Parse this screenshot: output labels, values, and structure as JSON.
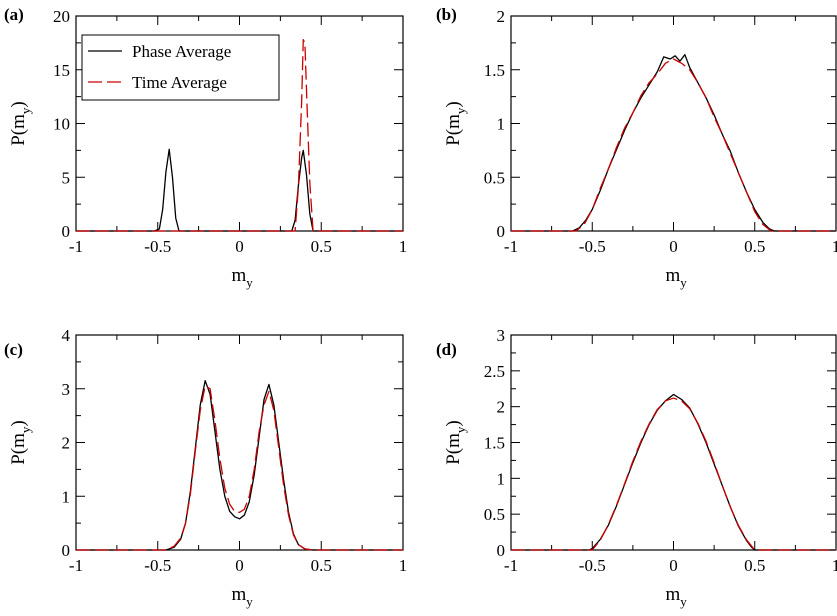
{
  "figure": {
    "background": "#ffffff"
  },
  "legend": {
    "entries": [
      {
        "name": "Phase Average",
        "color": "#000000",
        "dash": "solid"
      },
      {
        "name": "Time Average",
        "color": "#cc0000",
        "dash": "dashed"
      }
    ]
  },
  "chart_data": [
    {
      "panel": "(a)",
      "type": "line",
      "xlabel": "m",
      "xlabel_sub": "y",
      "ylabel": "P(m",
      "ylabel_sub": "y",
      "ylabel_close": ")",
      "xlim": [
        -1,
        1
      ],
      "ylim": [
        0,
        20
      ],
      "xticks": [
        -1,
        -0.5,
        0,
        0.5,
        1
      ],
      "xtick_labels": [
        "-1",
        "-0.5",
        "0",
        "0.5",
        "1"
      ],
      "yticks": [
        0,
        5,
        10,
        15,
        20
      ],
      "ytick_labels": [
        "0",
        "5",
        "10",
        "15",
        "20"
      ],
      "legend": "top-left",
      "grid": false,
      "series": [
        {
          "name": "Phase Average",
          "color": "#000000",
          "dash": "solid",
          "points": [
            [
              -1,
              0
            ],
            [
              -0.52,
              0
            ],
            [
              -0.49,
              0.2
            ],
            [
              -0.47,
              2.0
            ],
            [
              -0.45,
              5.5
            ],
            [
              -0.43,
              7.6
            ],
            [
              -0.41,
              5.0
            ],
            [
              -0.39,
              1.2
            ],
            [
              -0.37,
              0
            ],
            [
              0.32,
              0
            ],
            [
              0.34,
              1.0
            ],
            [
              0.36,
              4.2
            ],
            [
              0.38,
              6.8
            ],
            [
              0.39,
              7.5
            ],
            [
              0.41,
              5.2
            ],
            [
              0.43,
              1.6
            ],
            [
              0.45,
              0
            ],
            [
              1,
              0
            ]
          ]
        },
        {
          "name": "Time Average",
          "color": "#cc0000",
          "dash": "dashed",
          "points": [
            [
              -1,
              0
            ],
            [
              0.34,
              0
            ],
            [
              0.36,
              4.0
            ],
            [
              0.38,
              12.0
            ],
            [
              0.39,
              17.8
            ],
            [
              0.4,
              17.5
            ],
            [
              0.41,
              13.0
            ],
            [
              0.43,
              4.5
            ],
            [
              0.45,
              0
            ],
            [
              1,
              0
            ]
          ]
        }
      ]
    },
    {
      "panel": "(b)",
      "type": "line",
      "xlabel": "m",
      "xlabel_sub": "y",
      "ylabel": "P(m",
      "ylabel_sub": "y",
      "ylabel_close": ")",
      "xlim": [
        -1,
        1
      ],
      "ylim": [
        0,
        2
      ],
      "xticks": [
        -1,
        -0.5,
        0,
        0.5,
        1
      ],
      "xtick_labels": [
        "-1",
        "-0.5",
        "0",
        "0.5",
        "1"
      ],
      "yticks": [
        0,
        0.5,
        1,
        1.5,
        2
      ],
      "ytick_labels": [
        "0",
        "0.5",
        "1",
        "1.5",
        "2"
      ],
      "grid": false,
      "series": [
        {
          "name": "Phase Average",
          "color": "#000000",
          "dash": "solid",
          "points": [
            [
              -1,
              0
            ],
            [
              -0.62,
              0
            ],
            [
              -0.58,
              0.03
            ],
            [
              -0.54,
              0.1
            ],
            [
              -0.5,
              0.2
            ],
            [
              -0.45,
              0.38
            ],
            [
              -0.4,
              0.58
            ],
            [
              -0.35,
              0.76
            ],
            [
              -0.3,
              0.94
            ],
            [
              -0.25,
              1.1
            ],
            [
              -0.2,
              1.24
            ],
            [
              -0.15,
              1.36
            ],
            [
              -0.1,
              1.48
            ],
            [
              -0.06,
              1.62
            ],
            [
              -0.02,
              1.6
            ],
            [
              0.01,
              1.63
            ],
            [
              0.04,
              1.58
            ],
            [
              0.07,
              1.64
            ],
            [
              0.1,
              1.52
            ],
            [
              0.15,
              1.38
            ],
            [
              0.2,
              1.24
            ],
            [
              0.25,
              1.08
            ],
            [
              0.3,
              0.9
            ],
            [
              0.35,
              0.74
            ],
            [
              0.4,
              0.54
            ],
            [
              0.45,
              0.36
            ],
            [
              0.5,
              0.2
            ],
            [
              0.55,
              0.08
            ],
            [
              0.59,
              0.02
            ],
            [
              0.62,
              0
            ],
            [
              1,
              0
            ]
          ]
        },
        {
          "name": "Time Average",
          "color": "#cc0000",
          "dash": "dashed",
          "points": [
            [
              -1,
              0
            ],
            [
              -0.6,
              0
            ],
            [
              -0.55,
              0.06
            ],
            [
              -0.5,
              0.2
            ],
            [
              -0.45,
              0.4
            ],
            [
              -0.4,
              0.58
            ],
            [
              -0.35,
              0.78
            ],
            [
              -0.3,
              0.96
            ],
            [
              -0.25,
              1.1
            ],
            [
              -0.2,
              1.26
            ],
            [
              -0.15,
              1.38
            ],
            [
              -0.1,
              1.46
            ],
            [
              -0.05,
              1.56
            ],
            [
              0,
              1.6
            ],
            [
              0.05,
              1.56
            ],
            [
              0.1,
              1.5
            ],
            [
              0.15,
              1.38
            ],
            [
              0.2,
              1.24
            ],
            [
              0.25,
              1.06
            ],
            [
              0.3,
              0.9
            ],
            [
              0.35,
              0.72
            ],
            [
              0.4,
              0.54
            ],
            [
              0.45,
              0.36
            ],
            [
              0.5,
              0.18
            ],
            [
              0.55,
              0.06
            ],
            [
              0.6,
              0
            ],
            [
              1,
              0
            ]
          ]
        }
      ]
    },
    {
      "panel": "(c)",
      "type": "line",
      "xlabel": "m",
      "xlabel_sub": "y",
      "ylabel": "P(m",
      "ylabel_sub": "y",
      "ylabel_close": ")",
      "xlim": [
        -1,
        1
      ],
      "ylim": [
        0,
        4
      ],
      "xticks": [
        -1,
        -0.5,
        0,
        0.5,
        1
      ],
      "xtick_labels": [
        "-1",
        "-0.5",
        "0",
        "0.5",
        "1"
      ],
      "yticks": [
        0,
        1,
        2,
        3,
        4
      ],
      "ytick_labels": [
        "0",
        "1",
        "2",
        "3",
        "4"
      ],
      "grid": false,
      "series": [
        {
          "name": "Phase Average",
          "color": "#000000",
          "dash": "solid",
          "points": [
            [
              -1,
              0
            ],
            [
              -0.45,
              0
            ],
            [
              -0.4,
              0.05
            ],
            [
              -0.36,
              0.2
            ],
            [
              -0.33,
              0.5
            ],
            [
              -0.3,
              1.1
            ],
            [
              -0.27,
              1.9
            ],
            [
              -0.24,
              2.7
            ],
            [
              -0.21,
              3.15
            ],
            [
              -0.18,
              2.9
            ],
            [
              -0.15,
              2.2
            ],
            [
              -0.12,
              1.5
            ],
            [
              -0.09,
              1.0
            ],
            [
              -0.06,
              0.72
            ],
            [
              -0.03,
              0.62
            ],
            [
              0,
              0.58
            ],
            [
              0.03,
              0.65
            ],
            [
              0.06,
              0.9
            ],
            [
              0.09,
              1.4
            ],
            [
              0.12,
              2.1
            ],
            [
              0.15,
              2.8
            ],
            [
              0.18,
              3.08
            ],
            [
              0.21,
              2.7
            ],
            [
              0.24,
              2.0
            ],
            [
              0.27,
              1.3
            ],
            [
              0.3,
              0.7
            ],
            [
              0.33,
              0.3
            ],
            [
              0.36,
              0.1
            ],
            [
              0.4,
              0.02
            ],
            [
              0.45,
              0
            ],
            [
              1,
              0
            ]
          ]
        },
        {
          "name": "Time Average",
          "color": "#cc0000",
          "dash": "dashed",
          "points": [
            [
              -1,
              0
            ],
            [
              -0.45,
              0
            ],
            [
              -0.4,
              0.07
            ],
            [
              -0.36,
              0.22
            ],
            [
              -0.33,
              0.5
            ],
            [
              -0.3,
              1.05
            ],
            [
              -0.27,
              1.85
            ],
            [
              -0.24,
              2.6
            ],
            [
              -0.21,
              3.05
            ],
            [
              -0.18,
              3.0
            ],
            [
              -0.15,
              2.4
            ],
            [
              -0.12,
              1.7
            ],
            [
              -0.09,
              1.15
            ],
            [
              -0.06,
              0.85
            ],
            [
              -0.03,
              0.72
            ],
            [
              0,
              0.7
            ],
            [
              0.03,
              0.76
            ],
            [
              0.06,
              1.0
            ],
            [
              0.09,
              1.5
            ],
            [
              0.12,
              2.2
            ],
            [
              0.15,
              2.7
            ],
            [
              0.18,
              2.95
            ],
            [
              0.21,
              2.6
            ],
            [
              0.24,
              1.9
            ],
            [
              0.27,
              1.2
            ],
            [
              0.3,
              0.65
            ],
            [
              0.33,
              0.28
            ],
            [
              0.36,
              0.1
            ],
            [
              0.4,
              0.02
            ],
            [
              0.45,
              0
            ],
            [
              1,
              0
            ]
          ]
        }
      ]
    },
    {
      "panel": "(d)",
      "type": "line",
      "xlabel": "m",
      "xlabel_sub": "y",
      "ylabel": "P(m",
      "ylabel_sub": "y",
      "ylabel_close": ")",
      "xlim": [
        -1,
        1
      ],
      "ylim": [
        0,
        3
      ],
      "xticks": [
        -1,
        -0.5,
        0,
        0.5,
        1
      ],
      "xtick_labels": [
        "-1",
        "-0.5",
        "0",
        "0.5",
        "1"
      ],
      "yticks": [
        0,
        0.5,
        1,
        1.5,
        2,
        2.5,
        3
      ],
      "ytick_labels": [
        "0",
        "0.5",
        "1",
        "1.5",
        "2",
        "2.5",
        "3"
      ],
      "grid": false,
      "series": [
        {
          "name": "Phase Average",
          "color": "#000000",
          "dash": "solid",
          "points": [
            [
              -1,
              0
            ],
            [
              -0.52,
              0
            ],
            [
              -0.5,
              0.02
            ],
            [
              -0.45,
              0.15
            ],
            [
              -0.4,
              0.35
            ],
            [
              -0.35,
              0.62
            ],
            [
              -0.3,
              0.92
            ],
            [
              -0.25,
              1.22
            ],
            [
              -0.2,
              1.5
            ],
            [
              -0.15,
              1.75
            ],
            [
              -0.1,
              1.95
            ],
            [
              -0.05,
              2.08
            ],
            [
              0,
              2.17
            ],
            [
              0.05,
              2.1
            ],
            [
              0.1,
              1.98
            ],
            [
              0.15,
              1.76
            ],
            [
              0.2,
              1.5
            ],
            [
              0.25,
              1.2
            ],
            [
              0.3,
              0.9
            ],
            [
              0.35,
              0.6
            ],
            [
              0.4,
              0.33
            ],
            [
              0.45,
              0.13
            ],
            [
              0.48,
              0.04
            ],
            [
              0.5,
              0
            ],
            [
              1,
              0
            ]
          ]
        },
        {
          "name": "Time Average",
          "color": "#cc0000",
          "dash": "dashed",
          "points": [
            [
              -1,
              0
            ],
            [
              -0.5,
              0
            ],
            [
              -0.45,
              0.14
            ],
            [
              -0.4,
              0.36
            ],
            [
              -0.35,
              0.63
            ],
            [
              -0.3,
              0.93
            ],
            [
              -0.25,
              1.24
            ],
            [
              -0.2,
              1.52
            ],
            [
              -0.15,
              1.76
            ],
            [
              -0.1,
              1.96
            ],
            [
              -0.05,
              2.08
            ],
            [
              0,
              2.12
            ],
            [
              0.05,
              2.08
            ],
            [
              0.1,
              1.97
            ],
            [
              0.15,
              1.77
            ],
            [
              0.2,
              1.52
            ],
            [
              0.25,
              1.22
            ],
            [
              0.3,
              0.9
            ],
            [
              0.35,
              0.6
            ],
            [
              0.4,
              0.34
            ],
            [
              0.45,
              0.14
            ],
            [
              0.5,
              0
            ],
            [
              1,
              0
            ]
          ]
        }
      ]
    }
  ]
}
